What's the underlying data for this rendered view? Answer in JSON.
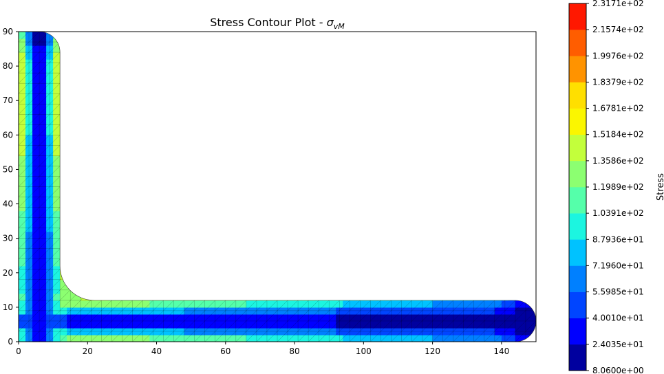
{
  "chart_data": {
    "type": "heatmap",
    "title": "Stress Contour Plot - ",
    "title_symbol": "σ",
    "title_subscript": "vM",
    "xlabel": "",
    "ylabel": "",
    "xlim": [
      0,
      150
    ],
    "ylim": [
      0,
      90
    ],
    "xticks": [
      "0",
      "20",
      "40",
      "60",
      "80",
      "100",
      "120",
      "140"
    ],
    "yticks": [
      "0",
      "10",
      "20",
      "30",
      "40",
      "50",
      "60",
      "70",
      "80",
      "90"
    ],
    "grid": false,
    "geometry": {
      "description_free": true,
      "vertical_leg": {
        "x": [
          0,
          12
        ],
        "y": [
          0,
          90
        ]
      },
      "horizontal_leg": {
        "x": [
          0,
          150
        ],
        "y": [
          0,
          12
        ]
      },
      "fillet_radius": 10,
      "tip_radius": 6
    },
    "colorbar": {
      "label": "Stress",
      "levels": [
        "8.0600e+00",
        "2.4035e+01",
        "4.0010e+01",
        "5.5985e+01",
        "7.1960e+01",
        "8.7936e+01",
        "1.0391e+02",
        "1.1989e+02",
        "1.3586e+02",
        "1.5184e+02",
        "1.6781e+02",
        "1.8379e+02",
        "1.9976e+02",
        "2.1574e+02",
        "2.3171e+02"
      ],
      "colors": [
        "#00009f",
        "#0000ff",
        "#0045ff",
        "#0080ff",
        "#00c2ff",
        "#1cf5e0",
        "#55ffaa",
        "#8cff71",
        "#c3ff3b",
        "#fbf600",
        "#ffdf00",
        "#ff9300",
        "#ff5d00",
        "#ff1800",
        "#a80000"
      ]
    }
  }
}
